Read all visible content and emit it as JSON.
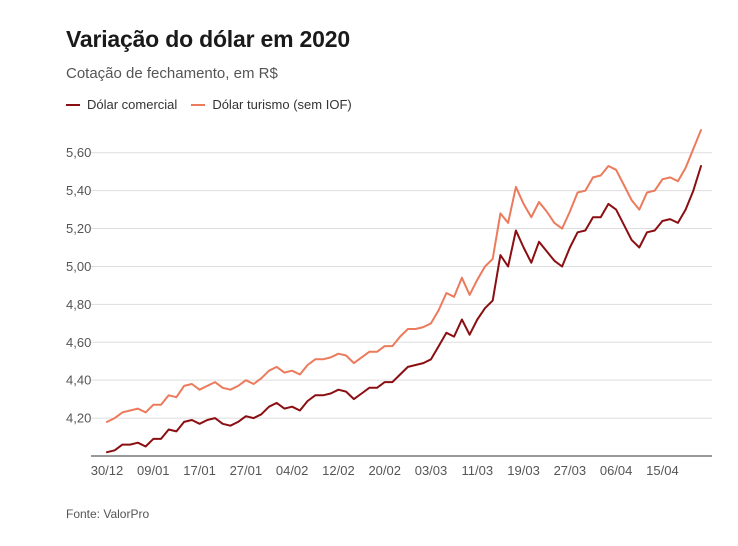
{
  "chart_data": {
    "type": "line",
    "title": "Variação do dólar em 2020",
    "subtitle": "Cotação de fechamento, em R$",
    "source": "Fonte: ValorPro",
    "legend_position": "top-left",
    "grid": true,
    "ylim": [
      4.0,
      5.72
    ],
    "yticks": [
      4.2,
      4.4,
      4.6,
      4.8,
      5.0,
      5.2,
      5.4,
      5.6
    ],
    "ytick_labels": [
      "4,20",
      "4,40",
      "4,60",
      "4,80",
      "5,00",
      "5,20",
      "5,40",
      "5,60"
    ],
    "xticks": [
      {
        "index": 0,
        "label": "30/12"
      },
      {
        "index": 6,
        "label": "09/01"
      },
      {
        "index": 12,
        "label": "17/01"
      },
      {
        "index": 18,
        "label": "27/01"
      },
      {
        "index": 24,
        "label": "04/02"
      },
      {
        "index": 30,
        "label": "12/02"
      },
      {
        "index": 36,
        "label": "20/02"
      },
      {
        "index": 42,
        "label": "03/03"
      },
      {
        "index": 48,
        "label": "11/03"
      },
      {
        "index": 54,
        "label": "19/03"
      },
      {
        "index": 60,
        "label": "27/03"
      },
      {
        "index": 66,
        "label": "06/04"
      },
      {
        "index": 72,
        "label": "15/04"
      }
    ],
    "series": [
      {
        "name": "Dólar comercial",
        "color": "#8b0f12",
        "values": [
          4.02,
          4.03,
          4.06,
          4.06,
          4.07,
          4.05,
          4.09,
          4.09,
          4.14,
          4.13,
          4.18,
          4.19,
          4.17,
          4.19,
          4.2,
          4.17,
          4.16,
          4.18,
          4.21,
          4.2,
          4.22,
          4.26,
          4.28,
          4.25,
          4.26,
          4.24,
          4.29,
          4.32,
          4.32,
          4.33,
          4.35,
          4.34,
          4.3,
          4.33,
          4.36,
          4.36,
          4.39,
          4.39,
          4.43,
          4.47,
          4.48,
          4.49,
          4.51,
          4.58,
          4.65,
          4.63,
          4.72,
          4.64,
          4.72,
          4.78,
          4.82,
          5.06,
          5.0,
          5.19,
          5.1,
          5.02,
          5.13,
          5.08,
          5.03,
          5.0,
          5.1,
          5.18,
          5.19,
          5.26,
          5.26,
          5.33,
          5.3,
          5.22,
          5.14,
          5.1,
          5.18,
          5.19,
          5.24,
          5.25,
          5.23,
          5.3,
          5.4,
          5.53
        ]
      },
      {
        "name": "Dólar turismo (sem IOF)",
        "color": "#ec7a5c",
        "values": [
          4.18,
          4.2,
          4.23,
          4.24,
          4.25,
          4.23,
          4.27,
          4.27,
          4.32,
          4.31,
          4.37,
          4.38,
          4.35,
          4.37,
          4.39,
          4.36,
          4.35,
          4.37,
          4.4,
          4.38,
          4.41,
          4.45,
          4.47,
          4.44,
          4.45,
          4.43,
          4.48,
          4.51,
          4.51,
          4.52,
          4.54,
          4.53,
          4.49,
          4.52,
          4.55,
          4.55,
          4.58,
          4.58,
          4.63,
          4.67,
          4.67,
          4.68,
          4.7,
          4.77,
          4.86,
          4.84,
          4.94,
          4.85,
          4.93,
          5.0,
          5.04,
          5.28,
          5.23,
          5.42,
          5.33,
          5.26,
          5.34,
          5.29,
          5.23,
          5.2,
          5.29,
          5.39,
          5.4,
          5.47,
          5.48,
          5.53,
          5.51,
          5.43,
          5.35,
          5.3,
          5.39,
          5.4,
          5.46,
          5.47,
          5.45,
          5.52,
          5.62,
          5.72
        ]
      }
    ]
  }
}
